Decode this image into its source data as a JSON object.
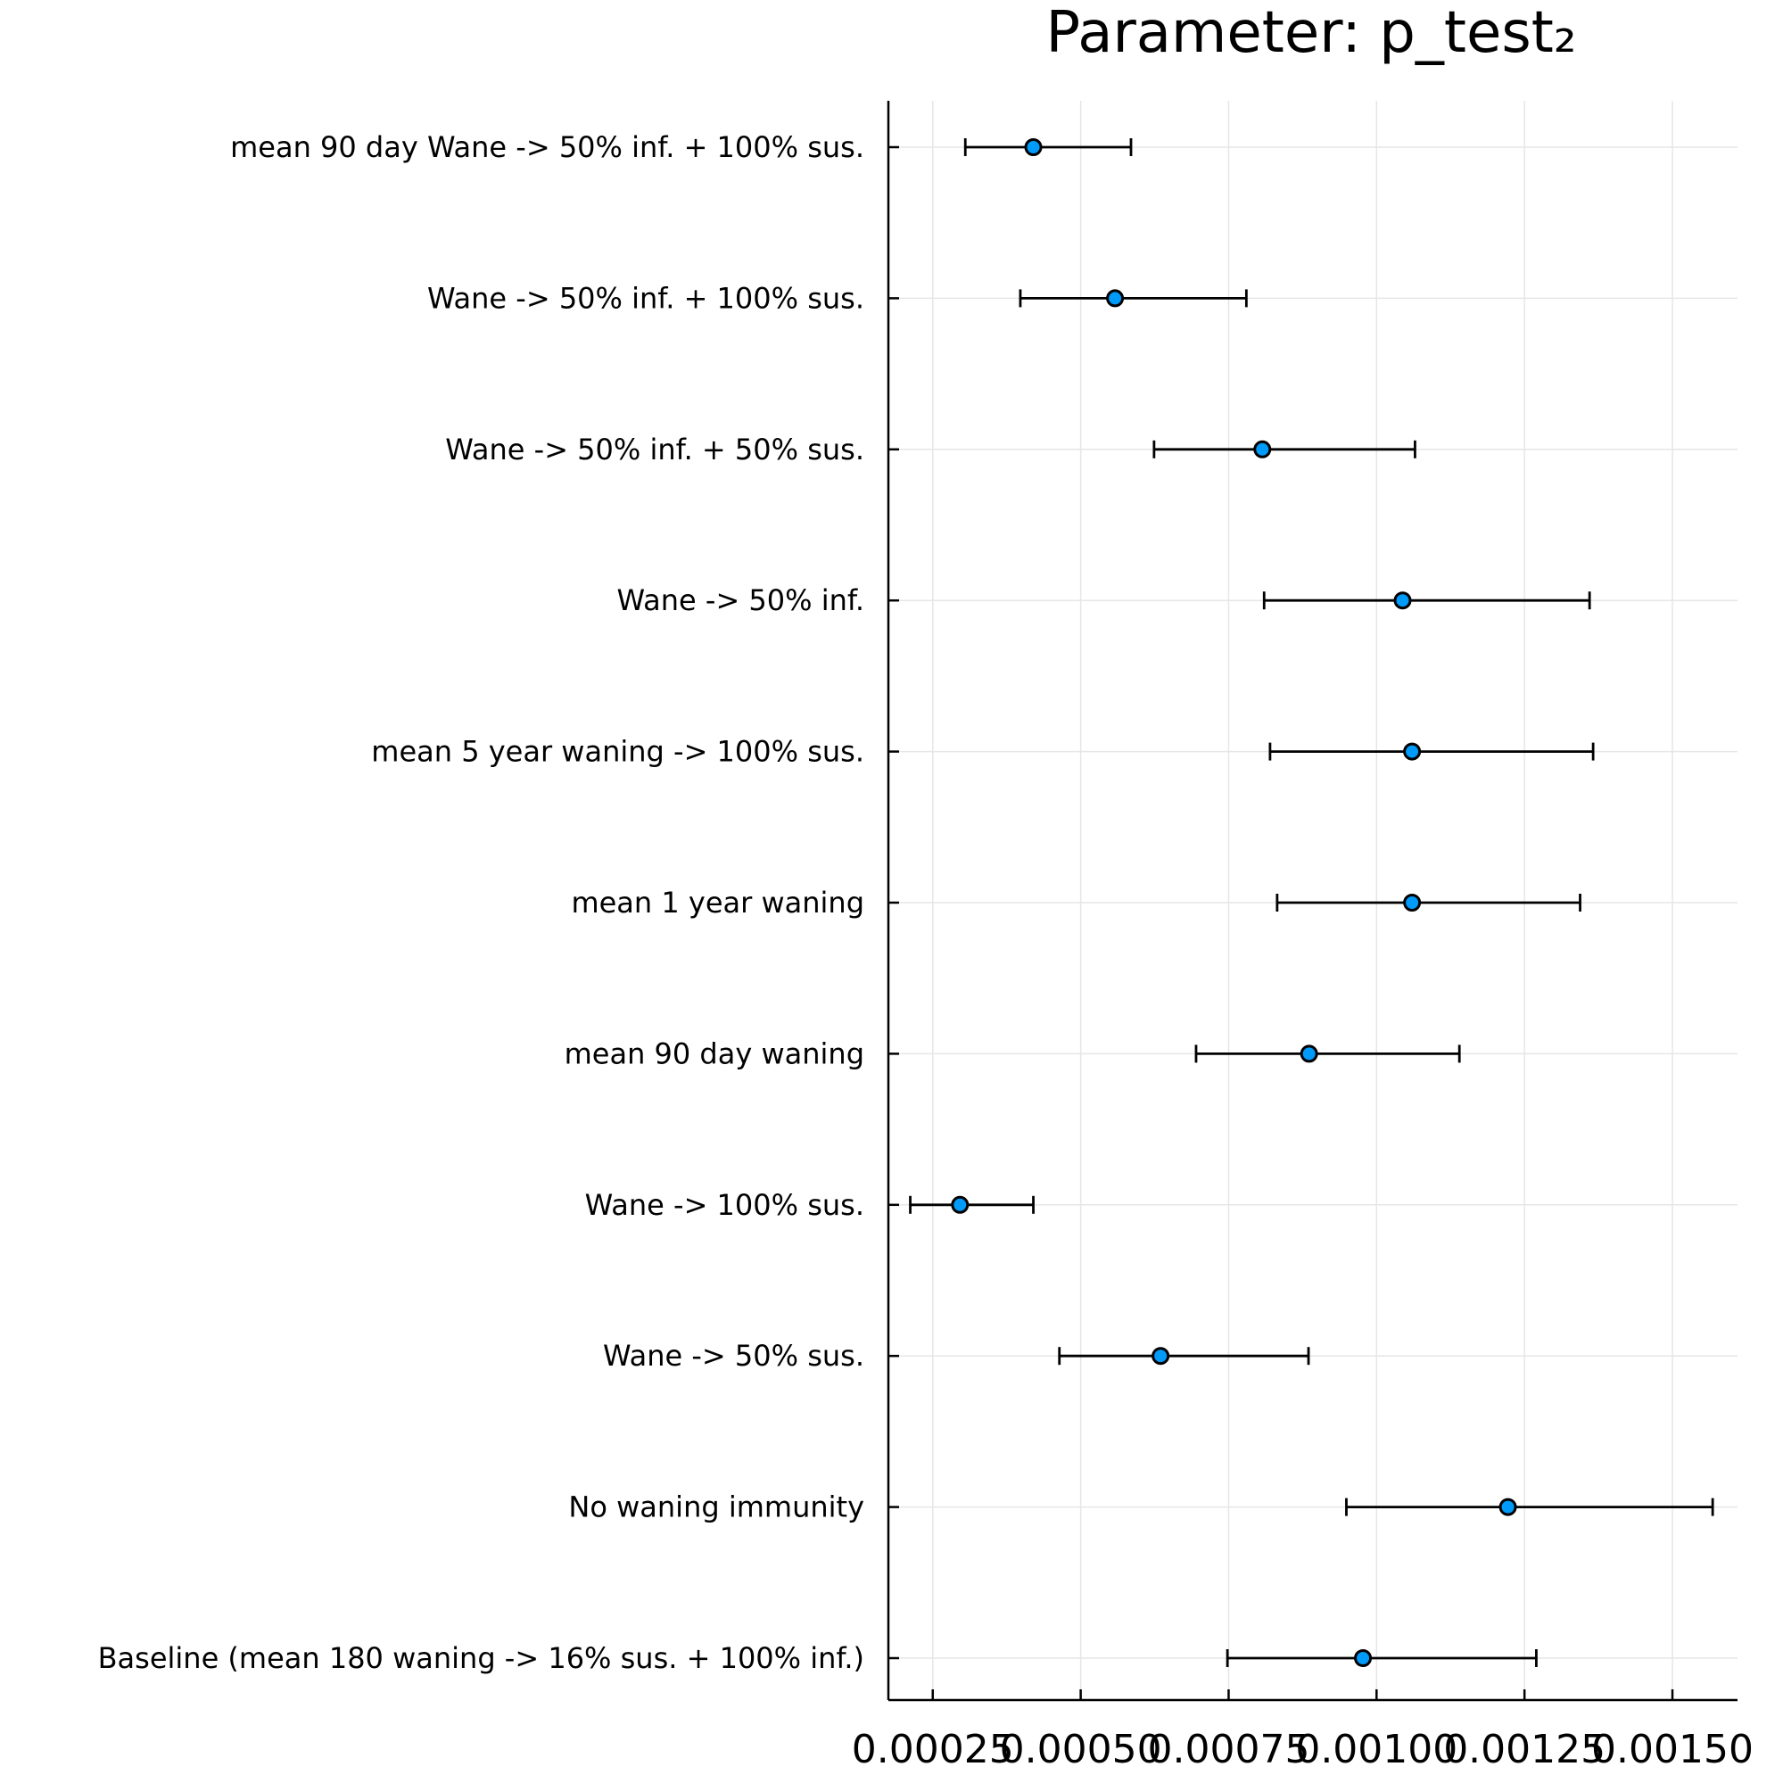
{
  "chart_data": {
    "type": "scatter",
    "title": "Parameter: p_test₂",
    "xlabel": "",
    "ylabel": "",
    "xlim": [
      0.000175,
      0.00161
    ],
    "xticks": [
      0.00025,
      0.0005,
      0.00075,
      0.001,
      0.00125,
      0.0015
    ],
    "xtick_labels": [
      "0.00025",
      "0.00050",
      "0.00075",
      "0.00100",
      "0.00125",
      "0.00150"
    ],
    "grid": true,
    "marker_color": "#009af9",
    "points": [
      {
        "label": "mean 90 day Wane -> 50% inf. + 100% sus.",
        "value": 0.00042,
        "lower": 0.000305,
        "upper": 0.000585
      },
      {
        "label": "Wane -> 50% inf. + 100% sus.",
        "value": 0.000558,
        "lower": 0.000398,
        "upper": 0.00078
      },
      {
        "label": "Wane -> 50% inf. + 50% sus.",
        "value": 0.000807,
        "lower": 0.000624,
        "upper": 0.001065
      },
      {
        "label": "Wane -> 50% inf.",
        "value": 0.001044,
        "lower": 0.00081,
        "upper": 0.00136
      },
      {
        "label": "mean 5 year waning -> 100% sus.",
        "value": 0.00106,
        "lower": 0.00082,
        "upper": 0.001366
      },
      {
        "label": "mean 1 year waning",
        "value": 0.00106,
        "lower": 0.000832,
        "upper": 0.001344
      },
      {
        "label": "mean 90 day waning",
        "value": 0.000886,
        "lower": 0.000695,
        "upper": 0.00114
      },
      {
        "label": "Wane -> 100% sus.",
        "value": 0.000296,
        "lower": 0.000212,
        "upper": 0.00042
      },
      {
        "label": "Wane -> 50% sus.",
        "value": 0.000635,
        "lower": 0.000464,
        "upper": 0.000885
      },
      {
        "label": "No waning immunity",
        "value": 0.001222,
        "lower": 0.000949,
        "upper": 0.001568
      },
      {
        "label": "Baseline (mean 180 waning -> 16% sus. + 100% inf.)",
        "value": 0.000977,
        "lower": 0.000748,
        "upper": 0.00127
      }
    ]
  }
}
